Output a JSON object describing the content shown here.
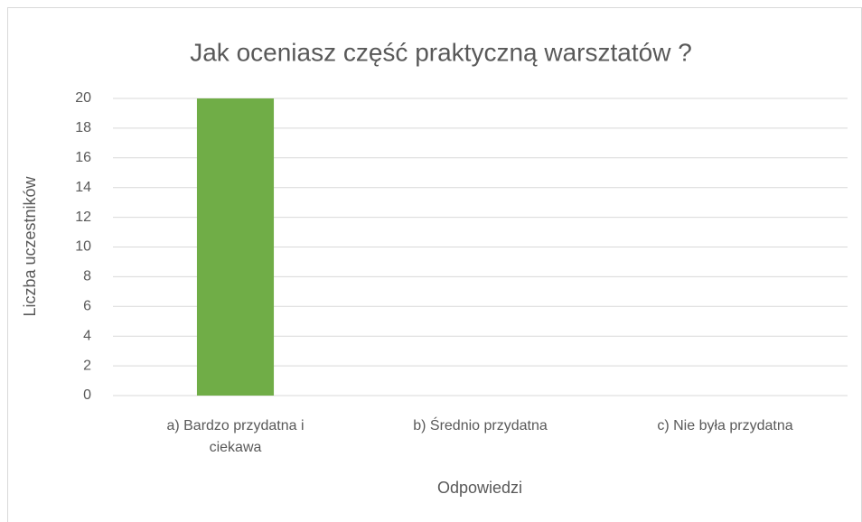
{
  "chart_data": {
    "type": "bar",
    "title": "Jak oceniasz część praktyczną warsztatów ?",
    "x_label": "Odpowiedzi",
    "y_label": "Liczba uczestników",
    "categories": [
      "a) Bardzo przydatna i ciekawa",
      "b) Średnio przydatna",
      "c) Nie była przydatna"
    ],
    "values": [
      20,
      0,
      0
    ],
    "color": "#70ad47",
    "ylim": [
      0,
      20
    ],
    "yticks": [
      0,
      2,
      4,
      6,
      8,
      10,
      12,
      14,
      16,
      18,
      20
    ],
    "grid": true
  }
}
